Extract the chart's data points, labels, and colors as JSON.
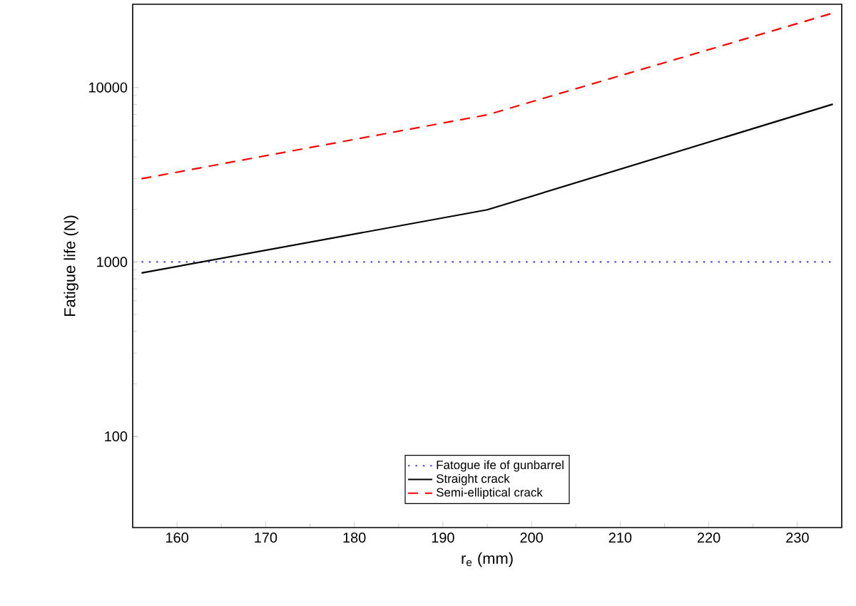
{
  "chart_data": {
    "type": "line",
    "xlabel": "r$_{e}$ (mm)",
    "ylabel": "Fatigue life (N)",
    "xlim": [
      155,
      235
    ],
    "ylim": [
      30,
      30000
    ],
    "log": "y",
    "grid": false,
    "legend": "bottom",
    "marker": "none",
    "xticks": [
      160,
      170,
      180,
      190,
      200,
      210,
      220,
      230
    ],
    "yticks": [
      100,
      1000,
      10000
    ],
    "series": [
      {
        "name": "Fatogue ife of gunbarrel",
        "color": "#4040ff",
        "line_style": "dotted",
        "x": [
          156,
          234
        ],
        "values": [
          1000,
          1000
        ]
      },
      {
        "name": "Straight crack",
        "color": "#000000",
        "line_style": "solid",
        "x": [
          156,
          195,
          234
        ],
        "values": [
          865,
          1990,
          8020
        ]
      },
      {
        "name": "Semi-elliptical crack",
        "color": "#ff0000",
        "line_style": "dashed",
        "x": [
          156,
          195,
          234
        ],
        "values": [
          3000,
          6970,
          26700
        ]
      }
    ]
  }
}
